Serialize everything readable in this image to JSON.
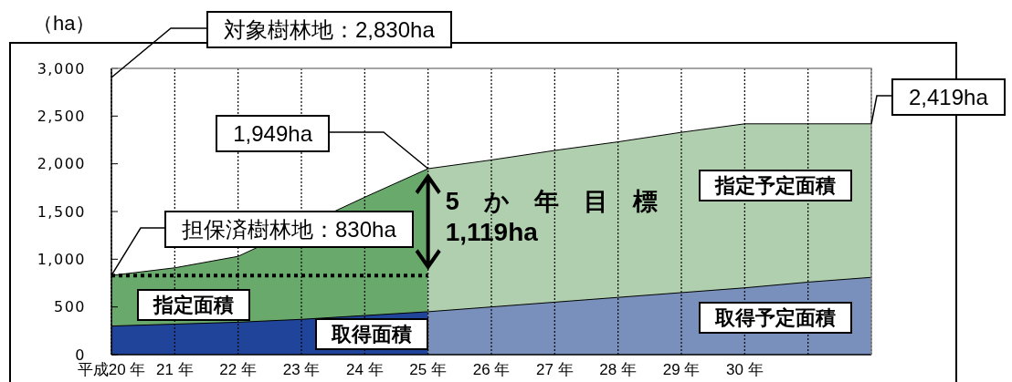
{
  "chart_data": {
    "type": "area",
    "ylabel": "（ha）",
    "annotations": [
      "対象樹林地：2,830ha",
      {
        "text": "1,949ha",
        "x": 25,
        "y": 1949
      },
      {
        "text": "2,419ha",
        "x": 32,
        "y": 2419
      },
      {
        "text": "担保済樹林地：830ha",
        "x": 20,
        "y": 830
      },
      {
        "text": "5　か　年　目　標",
        "x": 25,
        "y": 1949
      },
      {
        "text": "1,119ha",
        "x": 25,
        "y": 830
      }
    ],
    "xlim": [
      20,
      32
    ],
    "xticks": [
      {
        "value": 20,
        "label": "平成20 年"
      },
      {
        "value": 21,
        "label": "21 年"
      },
      {
        "value": 22,
        "label": "22 年"
      },
      {
        "value": 23,
        "label": "23 年"
      },
      {
        "value": 24,
        "label": "24 年"
      },
      {
        "value": 25,
        "label": "25 年"
      },
      {
        "value": 26,
        "label": "26 年"
      },
      {
        "value": 27,
        "label": "27 年"
      },
      {
        "value": 28,
        "label": "28 年"
      },
      {
        "value": 29,
        "label": "29 年"
      },
      {
        "value": 30,
        "label": "30 年"
      },
      {
        "value": 31,
        "label": null
      }
    ],
    "ylim": [
      0,
      3000
    ],
    "yticks": [
      0,
      500,
      {
        "value": 1000,
        "label": "1,000"
      },
      {
        "value": 1500,
        "label": "1,500"
      },
      {
        "value": 2000,
        "label": "2,000"
      },
      {
        "value": 2500,
        "label": "2,500"
      },
      {
        "value": 3000,
        "label": "3,000"
      }
    ],
    "grid": "x",
    "series": [
      {
        "name": "指定面積",
        "color": "#6aa96c",
        "x": [
          20,
          21,
          22,
          23,
          24,
          25
        ],
        "values": [
          830,
          910,
          1030,
          null,
          1650,
          1949
        ]
      },
      {
        "name": "指定予定面積",
        "color": "#afcfae",
        "x": [
          25,
          26,
          27,
          28,
          29,
          30,
          31,
          32
        ],
        "values": [
          1949,
          2040,
          2140,
          2230,
          2330,
          2419,
          2419,
          2419
        ]
      },
      {
        "name": "取得面積",
        "color": "#21449b",
        "x": [
          20,
          21,
          22,
          23,
          24,
          25
        ],
        "values": [
          300,
          320,
          340,
          370,
          410,
          450
        ]
      },
      {
        "name": "取得予定面積",
        "color": "#7890bb",
        "x": [
          25,
          26,
          27,
          28,
          29,
          30,
          31,
          32
        ],
        "values": [
          450,
          500,
          550,
          600,
          650,
          700,
          760,
          810
        ]
      },
      {
        "type": "line",
        "color": "#000000",
        "x": [
          20,
          25
        ],
        "values": [
          830,
          830
        ],
        "line_style": "dotted"
      }
    ]
  }
}
